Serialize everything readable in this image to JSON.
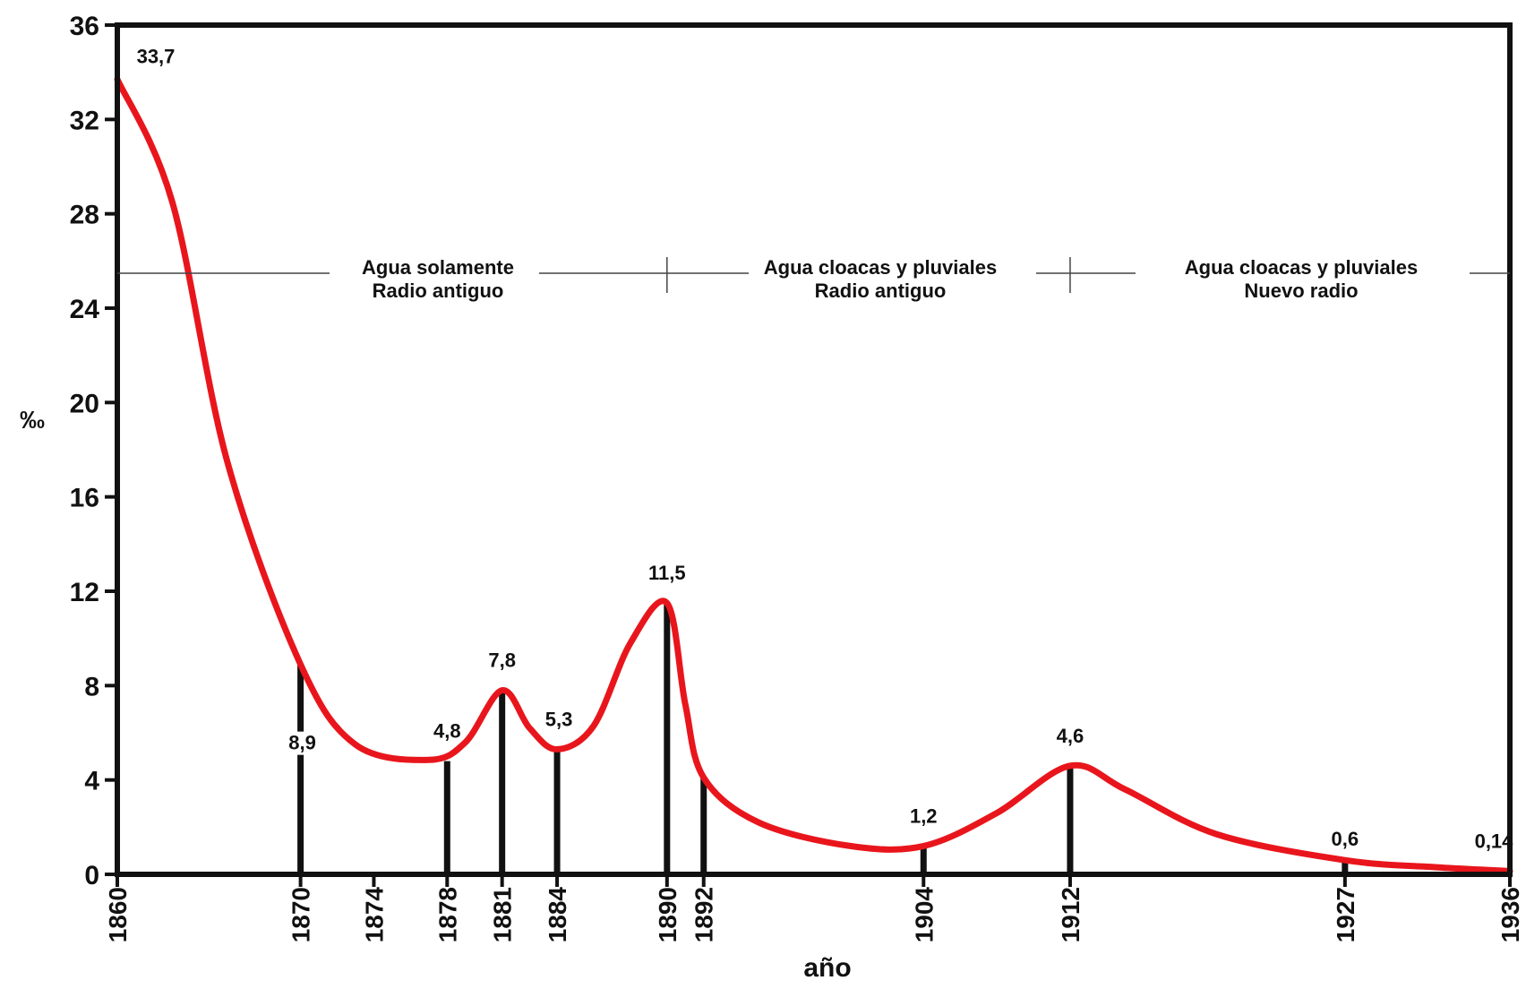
{
  "chart_data": {
    "type": "line",
    "xlabel": "año",
    "ylabel": "‰",
    "ylim": [
      0,
      36
    ],
    "yticks": [
      0,
      4,
      8,
      12,
      16,
      20,
      24,
      28,
      32,
      36
    ],
    "xlim": [
      1860,
      1936
    ],
    "xticks": [
      "1860",
      "1870",
      "1874",
      "1878",
      "1881",
      "1884",
      "1890",
      "1892",
      "1904",
      "1912",
      "1927",
      "1936"
    ],
    "grid": false,
    "line_color": "#e8161c",
    "series": [
      {
        "points": [
          {
            "x": 1860,
            "y": 33.7
          },
          {
            "x": 1870,
            "y": 8.9
          },
          {
            "x": 1878,
            "y": 4.8
          },
          {
            "x": 1881,
            "y": 7.8
          },
          {
            "x": 1884,
            "y": 5.3
          },
          {
            "x": 1890,
            "y": 11.5
          },
          {
            "x": 1904,
            "y": 1.2
          },
          {
            "x": 1912,
            "y": 4.6
          },
          {
            "x": 1927,
            "y": 0.6
          },
          {
            "x": 1936,
            "y": 0.14
          }
        ]
      }
    ],
    "data_labels": [
      {
        "x": 1860,
        "y": 33.7,
        "text": "33,7"
      },
      {
        "x": 1870,
        "y": 8.9,
        "text": "8,9"
      },
      {
        "x": 1878,
        "y": 4.8,
        "text": "4,8"
      },
      {
        "x": 1881,
        "y": 7.8,
        "text": "7,8"
      },
      {
        "x": 1884,
        "y": 5.3,
        "text": "5,3"
      },
      {
        "x": 1890,
        "y": 11.5,
        "text": "11,5"
      },
      {
        "x": 1904,
        "y": 1.2,
        "text": "1,2"
      },
      {
        "x": 1912,
        "y": 4.6,
        "text": "4,6"
      },
      {
        "x": 1927,
        "y": 0.6,
        "text": "0,6"
      },
      {
        "x": 1936,
        "y": 0.14,
        "text": "0,14"
      }
    ],
    "periods": [
      {
        "line1": "Agua solamente",
        "line2": "Radio antiguo"
      },
      {
        "line1": "Agua cloacas y pluviales",
        "line2": "Radio antiguo"
      },
      {
        "line1": "Agua cloacas y pluviales",
        "line2": "Nuevo radio"
      }
    ]
  }
}
